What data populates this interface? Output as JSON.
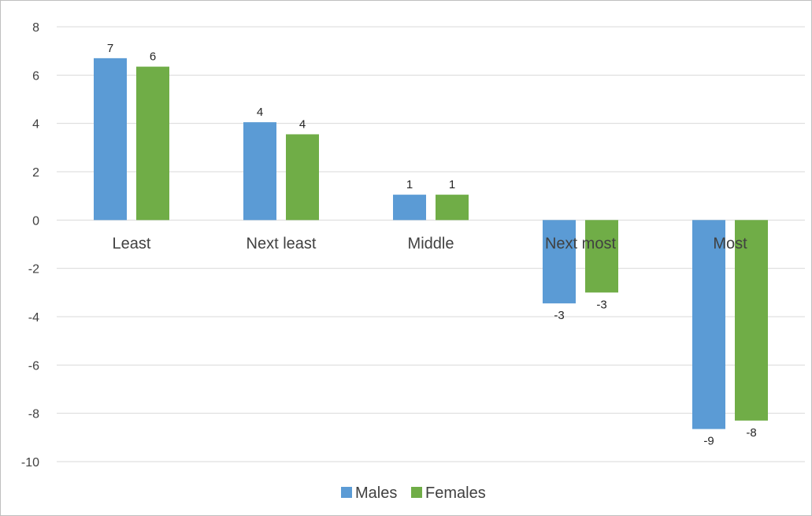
{
  "chart_data": {
    "type": "bar",
    "title": "",
    "xlabel": "",
    "ylabel": "",
    "categories": [
      "Least",
      "Next least",
      "Middle",
      "Next most",
      "Most"
    ],
    "series": [
      {
        "name": "Males",
        "color": "#5b9bd5",
        "values": [
          6.7,
          4.05,
          1.05,
          -3.45,
          -8.65
        ],
        "labels": [
          "7",
          "4",
          "1",
          "-3",
          "-9"
        ]
      },
      {
        "name": "Females",
        "color": "#70ad47",
        "values": [
          6.35,
          3.55,
          1.05,
          -3.0,
          -8.3
        ],
        "labels": [
          "6",
          "4",
          "1",
          "-3",
          "-8"
        ]
      }
    ],
    "ylim": [
      -10,
      8
    ],
    "yticks": [
      8,
      6,
      4,
      2,
      0,
      -2,
      -4,
      -6,
      -8,
      -10
    ],
    "ytick_labels": [
      "8",
      "6",
      "4",
      "2",
      "0",
      "-2",
      "-4",
      "-6",
      "-8",
      "-10"
    ],
    "grid": true,
    "legend_position": "bottom"
  }
}
